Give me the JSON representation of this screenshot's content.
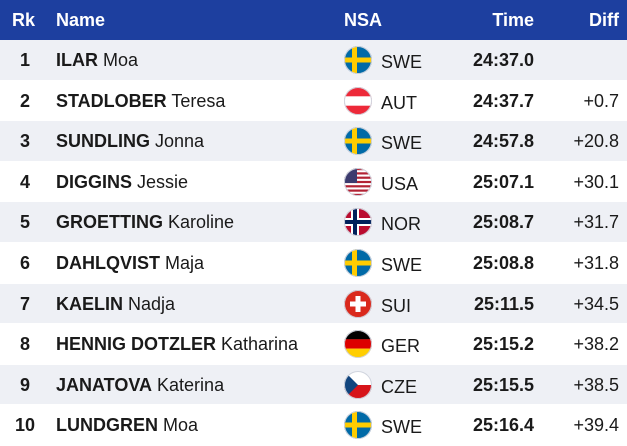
{
  "header": {
    "rank": "Rk",
    "name": "Name",
    "nsa": "NSA",
    "time": "Time",
    "diff": "Diff"
  },
  "rows": [
    {
      "rank": "1",
      "last": "ILAR",
      "first": "Moa",
      "flag": "swe-flag-icon",
      "nsa": "SWE",
      "time": "24:37.0",
      "diff": ""
    },
    {
      "rank": "2",
      "last": "STADLOBER",
      "first": "Teresa",
      "flag": "aut-flag-icon",
      "nsa": "AUT",
      "time": "24:37.7",
      "diff": "+0.7"
    },
    {
      "rank": "3",
      "last": "SUNDLING",
      "first": "Jonna",
      "flag": "swe-flag-icon",
      "nsa": "SWE",
      "time": "24:57.8",
      "diff": "+20.8"
    },
    {
      "rank": "4",
      "last": "DIGGINS",
      "first": "Jessie",
      "flag": "usa-flag-icon",
      "nsa": "USA",
      "time": "25:07.1",
      "diff": "+30.1"
    },
    {
      "rank": "5",
      "last": "GROETTING",
      "first": "Karoline",
      "flag": "nor-flag-icon",
      "nsa": "NOR",
      "time": "25:08.7",
      "diff": "+31.7"
    },
    {
      "rank": "6",
      "last": "DAHLQVIST",
      "first": "Maja",
      "flag": "swe-flag-icon",
      "nsa": "SWE",
      "time": "25:08.8",
      "diff": "+31.8"
    },
    {
      "rank": "7",
      "last": "KAELIN",
      "first": "Nadja",
      "flag": "sui-flag-icon",
      "nsa": "SUI",
      "time": "25:11.5",
      "diff": "+34.5"
    },
    {
      "rank": "8",
      "last": "HENNIG DOTZLER",
      "first": "Katharina",
      "flag": "ger-flag-icon",
      "nsa": "GER",
      "time": "25:15.2",
      "diff": "+38.2"
    },
    {
      "rank": "9",
      "last": "JANATOVA",
      "first": "Katerina",
      "flag": "cze-flag-icon",
      "nsa": "CZE",
      "time": "25:15.5",
      "diff": "+38.5"
    },
    {
      "rank": "10",
      "last": "LUNDGREN",
      "first": "Moa",
      "flag": "swe-flag-icon",
      "nsa": "SWE",
      "time": "25:16.4",
      "diff": "+39.4"
    }
  ],
  "colors": {
    "header_bg": "#1d3f9f",
    "row_alt_bg": "#eef0f5"
  }
}
